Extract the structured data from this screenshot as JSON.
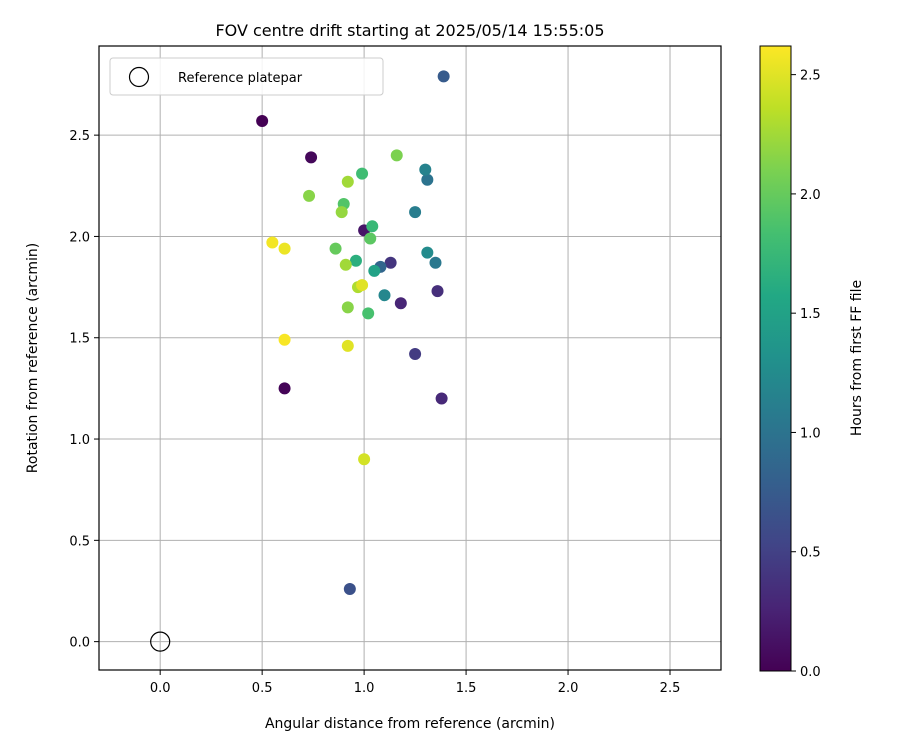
{
  "chart_data": {
    "type": "scatter",
    "title": "FOV centre drift starting at 2025/05/14 15:55:05",
    "xlabel": "Angular distance from reference (arcmin)",
    "ylabel": "Rotation from reference (arcmin)",
    "xlim": [
      -0.3,
      2.75
    ],
    "ylim": [
      -0.14,
      2.94
    ],
    "xticks": [
      "0.0",
      "0.5",
      "1.0",
      "1.5",
      "2.0",
      "2.5"
    ],
    "yticks": [
      "0.0",
      "0.5",
      "1.0",
      "1.5",
      "2.0",
      "2.5"
    ],
    "grid": true,
    "legend": {
      "label": "Reference platepar",
      "placement": "top-left"
    },
    "reference_point": {
      "x": 0.0,
      "y": 0.0
    },
    "colorbar": {
      "label": "Hours from first FF file",
      "min": 0.0,
      "max": 2.62,
      "ticks": [
        "0.0",
        "0.5",
        "1.0",
        "1.5",
        "2.0",
        "2.5"
      ],
      "colormap": "viridis"
    },
    "points": [
      {
        "x": 0.5,
        "y": 2.57,
        "c": 0.0
      },
      {
        "x": 0.61,
        "y": 1.25,
        "c": 0.02
      },
      {
        "x": 0.74,
        "y": 2.39,
        "c": 0.05
      },
      {
        "x": 1.0,
        "y": 2.03,
        "c": 0.15
      },
      {
        "x": 1.18,
        "y": 1.67,
        "c": 0.28
      },
      {
        "x": 1.38,
        "y": 1.2,
        "c": 0.3
      },
      {
        "x": 1.36,
        "y": 1.73,
        "c": 0.35
      },
      {
        "x": 1.13,
        "y": 1.87,
        "c": 0.4
      },
      {
        "x": 1.25,
        "y": 1.42,
        "c": 0.45
      },
      {
        "x": 0.93,
        "y": 0.26,
        "c": 0.65
      },
      {
        "x": 1.39,
        "y": 2.79,
        "c": 0.75
      },
      {
        "x": 1.08,
        "y": 1.85,
        "c": 0.85
      },
      {
        "x": 1.31,
        "y": 2.28,
        "c": 1.0
      },
      {
        "x": 1.35,
        "y": 1.87,
        "c": 1.05
      },
      {
        "x": 1.25,
        "y": 2.12,
        "c": 1.1
      },
      {
        "x": 1.3,
        "y": 2.33,
        "c": 1.15
      },
      {
        "x": 1.1,
        "y": 1.71,
        "c": 1.2
      },
      {
        "x": 1.31,
        "y": 1.92,
        "c": 1.25
      },
      {
        "x": 1.05,
        "y": 1.83,
        "c": 1.5
      },
      {
        "x": 0.96,
        "y": 1.88,
        "c": 1.65
      },
      {
        "x": 1.04,
        "y": 2.05,
        "c": 1.75
      },
      {
        "x": 0.99,
        "y": 2.31,
        "c": 1.8
      },
      {
        "x": 1.02,
        "y": 1.62,
        "c": 1.85
      },
      {
        "x": 0.9,
        "y": 2.16,
        "c": 1.9
      },
      {
        "x": 1.03,
        "y": 1.99,
        "c": 1.95
      },
      {
        "x": 0.86,
        "y": 1.94,
        "c": 2.0
      },
      {
        "x": 1.16,
        "y": 2.4,
        "c": 2.1
      },
      {
        "x": 0.73,
        "y": 2.2,
        "c": 2.15
      },
      {
        "x": 0.92,
        "y": 1.65,
        "c": 2.15
      },
      {
        "x": 0.89,
        "y": 2.12,
        "c": 2.2
      },
      {
        "x": 0.92,
        "y": 2.27,
        "c": 2.25
      },
      {
        "x": 0.91,
        "y": 1.86,
        "c": 2.25
      },
      {
        "x": 0.97,
        "y": 1.75,
        "c": 2.3
      },
      {
        "x": 0.92,
        "y": 1.46,
        "c": 2.5
      },
      {
        "x": 1.0,
        "y": 0.9,
        "c": 2.45
      },
      {
        "x": 0.99,
        "y": 1.76,
        "c": 2.5
      },
      {
        "x": 0.61,
        "y": 1.94,
        "c": 2.55
      },
      {
        "x": 0.55,
        "y": 1.97,
        "c": 2.58
      },
      {
        "x": 0.61,
        "y": 1.49,
        "c": 2.6
      }
    ]
  }
}
